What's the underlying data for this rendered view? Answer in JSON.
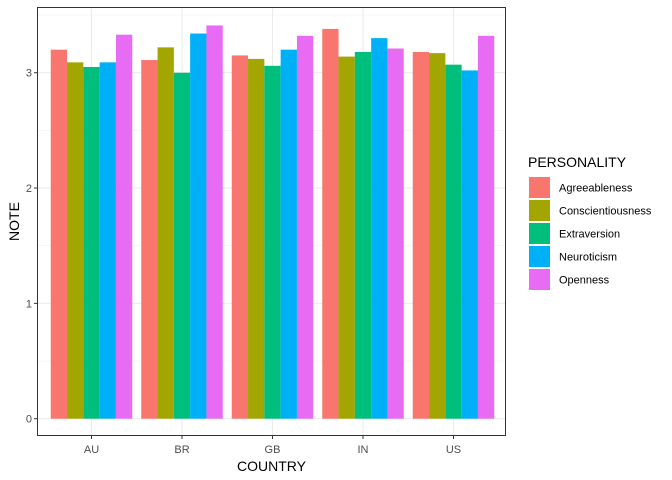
{
  "chart_data": {
    "type": "bar",
    "xlabel": "COUNTRY",
    "ylabel": "NOTE",
    "ylim": [
      -0.15,
      3.57
    ],
    "yticks": [
      "0",
      "1",
      "2",
      "3"
    ],
    "grid": true,
    "legend_placement": "right",
    "legend_title": "PERSONALITY",
    "categories": [
      "AU",
      "BR",
      "GB",
      "IN",
      "US"
    ],
    "series": [
      {
        "name": "Agreeableness",
        "color": "#F8766D",
        "values": [
          3.2,
          3.11,
          3.15,
          3.38,
          3.18
        ]
      },
      {
        "name": "Conscientiousness",
        "color": "#A3A500",
        "values": [
          3.09,
          3.22,
          3.12,
          3.14,
          3.17
        ]
      },
      {
        "name": "Extraversion",
        "color": "#00BF7D",
        "values": [
          3.05,
          3.0,
          3.06,
          3.18,
          3.07
        ]
      },
      {
        "name": "Neuroticism",
        "color": "#00B0F6",
        "values": [
          3.09,
          3.34,
          3.2,
          3.3,
          3.02
        ]
      },
      {
        "name": "Openness",
        "color": "#E76BF3",
        "values": [
          3.33,
          3.41,
          3.32,
          3.21,
          3.32
        ]
      }
    ]
  }
}
